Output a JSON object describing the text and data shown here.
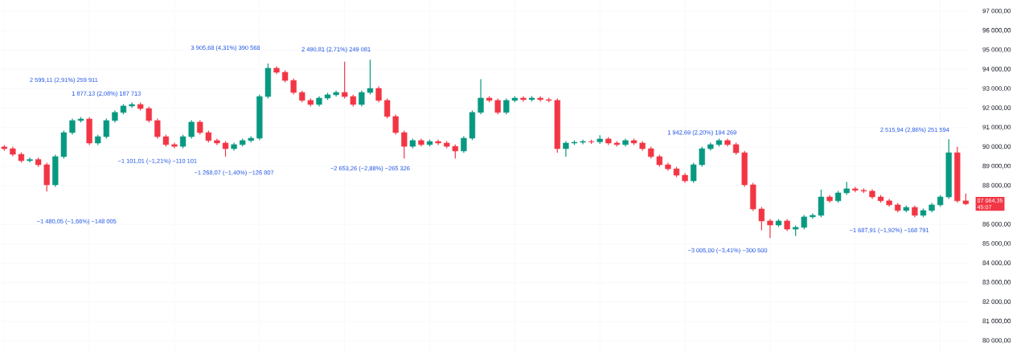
{
  "chart_data": {
    "type": "candlestick",
    "categories": [
      null,
      null,
      null,
      null,
      null,
      null,
      null,
      null,
      null,
      null,
      null,
      null,
      null,
      null,
      null,
      null,
      null,
      null,
      null,
      null,
      null,
      null,
      null,
      null,
      null,
      null,
      null,
      null,
      null,
      null,
      null,
      null,
      null,
      null,
      null,
      null,
      null,
      null,
      null,
      null,
      null,
      null,
      null,
      null,
      null,
      null,
      null,
      null,
      null,
      null,
      null,
      null,
      null,
      null,
      null,
      null,
      null,
      null,
      null,
      null,
      null,
      null,
      null,
      null,
      null,
      null,
      null,
      null,
      null,
      null,
      null,
      null,
      null,
      null,
      null,
      null,
      null,
      null,
      null,
      null,
      null,
      null,
      null,
      null,
      null,
      null,
      null,
      null,
      null,
      null,
      null,
      null,
      null,
      null,
      null,
      null,
      null,
      null,
      null,
      null,
      null,
      null,
      null,
      null,
      null,
      null,
      null,
      null,
      null,
      null,
      null,
      null,
      null,
      null
    ],
    "ohlc": [
      [
        90000,
        90100,
        89810,
        89910
      ],
      [
        89910,
        90010,
        89520,
        89620
      ],
      [
        89620,
        89720,
        89190,
        89290
      ],
      [
        89290,
        89450,
        89190,
        89350
      ],
      [
        89350,
        89450,
        88980,
        89080
      ],
      [
        89080,
        89180,
        87700,
        88045
      ],
      [
        88045,
        89600,
        87945,
        89500
      ],
      [
        89500,
        90840,
        89400,
        90740
      ],
      [
        90740,
        91460,
        90640,
        91360
      ],
      [
        91360,
        91540,
        91260,
        91440
      ],
      [
        91440,
        91540,
        90100,
        90200
      ],
      [
        90200,
        90630,
        90100,
        90530
      ],
      [
        90530,
        91460,
        90430,
        91360
      ],
      [
        91360,
        91880,
        91260,
        91780
      ],
      [
        91780,
        92210,
        91680,
        92110
      ],
      [
        92110,
        92290,
        92010,
        92190
      ],
      [
        92190,
        92290,
        91880,
        91980
      ],
      [
        91980,
        92080,
        91260,
        91360
      ],
      [
        91360,
        91460,
        90430,
        90530
      ],
      [
        90530,
        90630,
        90020,
        90120
      ],
      [
        90120,
        90220,
        89930,
        90030
      ],
      [
        90030,
        90630,
        89930,
        90530
      ],
      [
        90530,
        91380,
        90430,
        91280
      ],
      [
        91280,
        91380,
        90640,
        90740
      ],
      [
        90740,
        90840,
        90230,
        90330
      ],
      [
        90330,
        90430,
        90100,
        90200
      ],
      [
        90200,
        90300,
        89500,
        89910
      ],
      [
        89910,
        90220,
        89810,
        90120
      ],
      [
        90120,
        90430,
        90020,
        90330
      ],
      [
        90330,
        90550,
        90230,
        90450
      ],
      [
        90450,
        92700,
        90350,
        92600
      ],
      [
        92600,
        94300,
        92500,
        94060
      ],
      [
        94060,
        94160,
        93750,
        93850
      ],
      [
        93850,
        93950,
        93330,
        93430
      ],
      [
        93430,
        93530,
        92710,
        92810
      ],
      [
        92810,
        92910,
        92300,
        92400
      ],
      [
        92400,
        92500,
        92090,
        92190
      ],
      [
        92190,
        92620,
        92090,
        92520
      ],
      [
        92520,
        92790,
        92420,
        92690
      ],
      [
        92690,
        92910,
        92590,
        92810
      ],
      [
        92810,
        94400,
        92500,
        92600
      ],
      [
        92600,
        92700,
        92090,
        92190
      ],
      [
        92190,
        92910,
        92090,
        92810
      ],
      [
        92810,
        94500,
        92710,
        93020
      ],
      [
        93020,
        93120,
        92300,
        92400
      ],
      [
        92400,
        92500,
        91470,
        91570
      ],
      [
        91570,
        91670,
        90640,
        90740
      ],
      [
        90740,
        90840,
        89400,
        90030
      ],
      [
        90030,
        90430,
        89930,
        90330
      ],
      [
        90330,
        90430,
        90020,
        90120
      ],
      [
        90120,
        90380,
        90020,
        90280
      ],
      [
        90280,
        90380,
        90100,
        90200
      ],
      [
        90200,
        90300,
        89930,
        90030
      ],
      [
        90030,
        90130,
        89400,
        89790
      ],
      [
        89790,
        90550,
        89690,
        90450
      ],
      [
        90450,
        91880,
        90350,
        91780
      ],
      [
        91780,
        93500,
        91680,
        92520
      ],
      [
        92520,
        92620,
        92300,
        92400
      ],
      [
        92400,
        92500,
        91680,
        91780
      ],
      [
        91780,
        92500,
        91680,
        92400
      ],
      [
        92400,
        92620,
        92300,
        92520
      ],
      [
        92520,
        92620,
        92340,
        92440
      ],
      [
        92440,
        92620,
        92340,
        92520
      ],
      [
        92520,
        92620,
        92340,
        92440
      ],
      [
        92440,
        92540,
        92300,
        92400
      ],
      [
        92400,
        92500,
        89700,
        89910
      ],
      [
        89910,
        90300,
        89500,
        90200
      ],
      [
        90200,
        90340,
        90100,
        90240
      ],
      [
        90240,
        90380,
        90140,
        90280
      ],
      [
        90280,
        90380,
        90160,
        90260
      ],
      [
        90260,
        90600,
        90160,
        90410
      ],
      [
        90410,
        90510,
        90100,
        90200
      ],
      [
        90200,
        90300,
        90020,
        90120
      ],
      [
        90120,
        90430,
        90020,
        90330
      ],
      [
        90330,
        90430,
        90100,
        90200
      ],
      [
        90200,
        90300,
        89810,
        89910
      ],
      [
        89910,
        90010,
        89400,
        89500
      ],
      [
        89500,
        89600,
        88980,
        89080
      ],
      [
        89080,
        89180,
        88770,
        88870
      ],
      [
        88870,
        88970,
        88440,
        88540
      ],
      [
        88540,
        88640,
        88150,
        88250
      ],
      [
        88250,
        89180,
        88150,
        89080
      ],
      [
        89080,
        90010,
        88980,
        89910
      ],
      [
        89910,
        90220,
        89810,
        90120
      ],
      [
        90120,
        90430,
        90020,
        90330
      ],
      [
        90330,
        90430,
        90020,
        90120
      ],
      [
        90120,
        90220,
        89600,
        89700
      ],
      [
        89700,
        89800,
        87945,
        88045
      ],
      [
        88045,
        88145,
        86700,
        86800
      ],
      [
        86800,
        86900,
        85700,
        86180
      ],
      [
        86180,
        86280,
        85300,
        85970
      ],
      [
        85970,
        86280,
        85870,
        86180
      ],
      [
        86180,
        86280,
        85660,
        85760
      ],
      [
        85760,
        85950,
        85400,
        85850
      ],
      [
        85850,
        86490,
        85750,
        86390
      ],
      [
        86390,
        86570,
        86290,
        86470
      ],
      [
        86470,
        87800,
        86370,
        87420
      ],
      [
        87420,
        87520,
        87120,
        87220
      ],
      [
        87220,
        87730,
        87120,
        87630
      ],
      [
        87630,
        88200,
        87530,
        87840
      ],
      [
        87840,
        87940,
        87660,
        87760
      ],
      [
        87760,
        87860,
        87620,
        87720
      ],
      [
        87720,
        87820,
        87320,
        87420
      ],
      [
        87420,
        87520,
        87120,
        87220
      ],
      [
        87220,
        87320,
        86910,
        87010
      ],
      [
        87010,
        87110,
        86620,
        86720
      ],
      [
        86720,
        86980,
        86620,
        86880
      ],
      [
        86880,
        86980,
        86370,
        86470
      ],
      [
        86470,
        86820,
        86370,
        86720
      ],
      [
        86720,
        87110,
        86620,
        87010
      ],
      [
        87010,
        87520,
        86910,
        87420
      ],
      [
        87420,
        90400,
        87320,
        89700
      ],
      [
        89700,
        90000,
        87120,
        87220
      ],
      [
        87220,
        87600,
        87000,
        87064.35
      ]
    ],
    "ylim": [
      79420,
      97580
    ],
    "yticks": [
      {
        "value": 80000,
        "label": "80 000,00"
      },
      {
        "value": 81000,
        "label": "81 000,00"
      },
      {
        "value": 82000,
        "label": "82 000,00"
      },
      {
        "value": 83000,
        "label": "83 000,00"
      },
      {
        "value": 84000,
        "label": "84 000,00"
      },
      {
        "value": 85000,
        "label": "85 000,00"
      },
      {
        "value": 86000,
        "label": "86 000,00"
      },
      {
        "value": 88000,
        "label": "88 000,00"
      },
      {
        "value": 89000,
        "label": "89 000,00"
      },
      {
        "value": 90000,
        "label": "90 000,00"
      },
      {
        "value": 91000,
        "label": "91 000,00"
      },
      {
        "value": 92000,
        "label": "92 000,00"
      },
      {
        "value": 93000,
        "label": "93 000,00"
      },
      {
        "value": 94000,
        "label": "94 000,00"
      },
      {
        "value": 95000,
        "label": "95 000,00"
      },
      {
        "value": 96000,
        "label": "96 000,00"
      },
      {
        "value": 97000,
        "label": "97 000,00"
      }
    ],
    "grid": true,
    "tick_labels": "y",
    "annotations": [
      "2 599,11 (2,91%) 259 911",
      "−1 480,05 (−1,66%) −148 005",
      "1 877,13 (2,08%) 187 713",
      "−1 101,01 (−1,21%) −110 101",
      "−1 268,07 (−1,40%) −126 807",
      "3 905,68 (4,31%) 390 568",
      "2 490,81 (2,71%) 249 081",
      "−2 653,26 (−2,88%) −265 326",
      "1 942,69 (2,20%) 194 269",
      "−3 005,00 (−3,41%) −300 500",
      "2 515,94 (2,86%) 251 594",
      "−1 687,91 (−1,92%) −168 791",
      "87 064,35",
      "45:07"
    ]
  }
}
